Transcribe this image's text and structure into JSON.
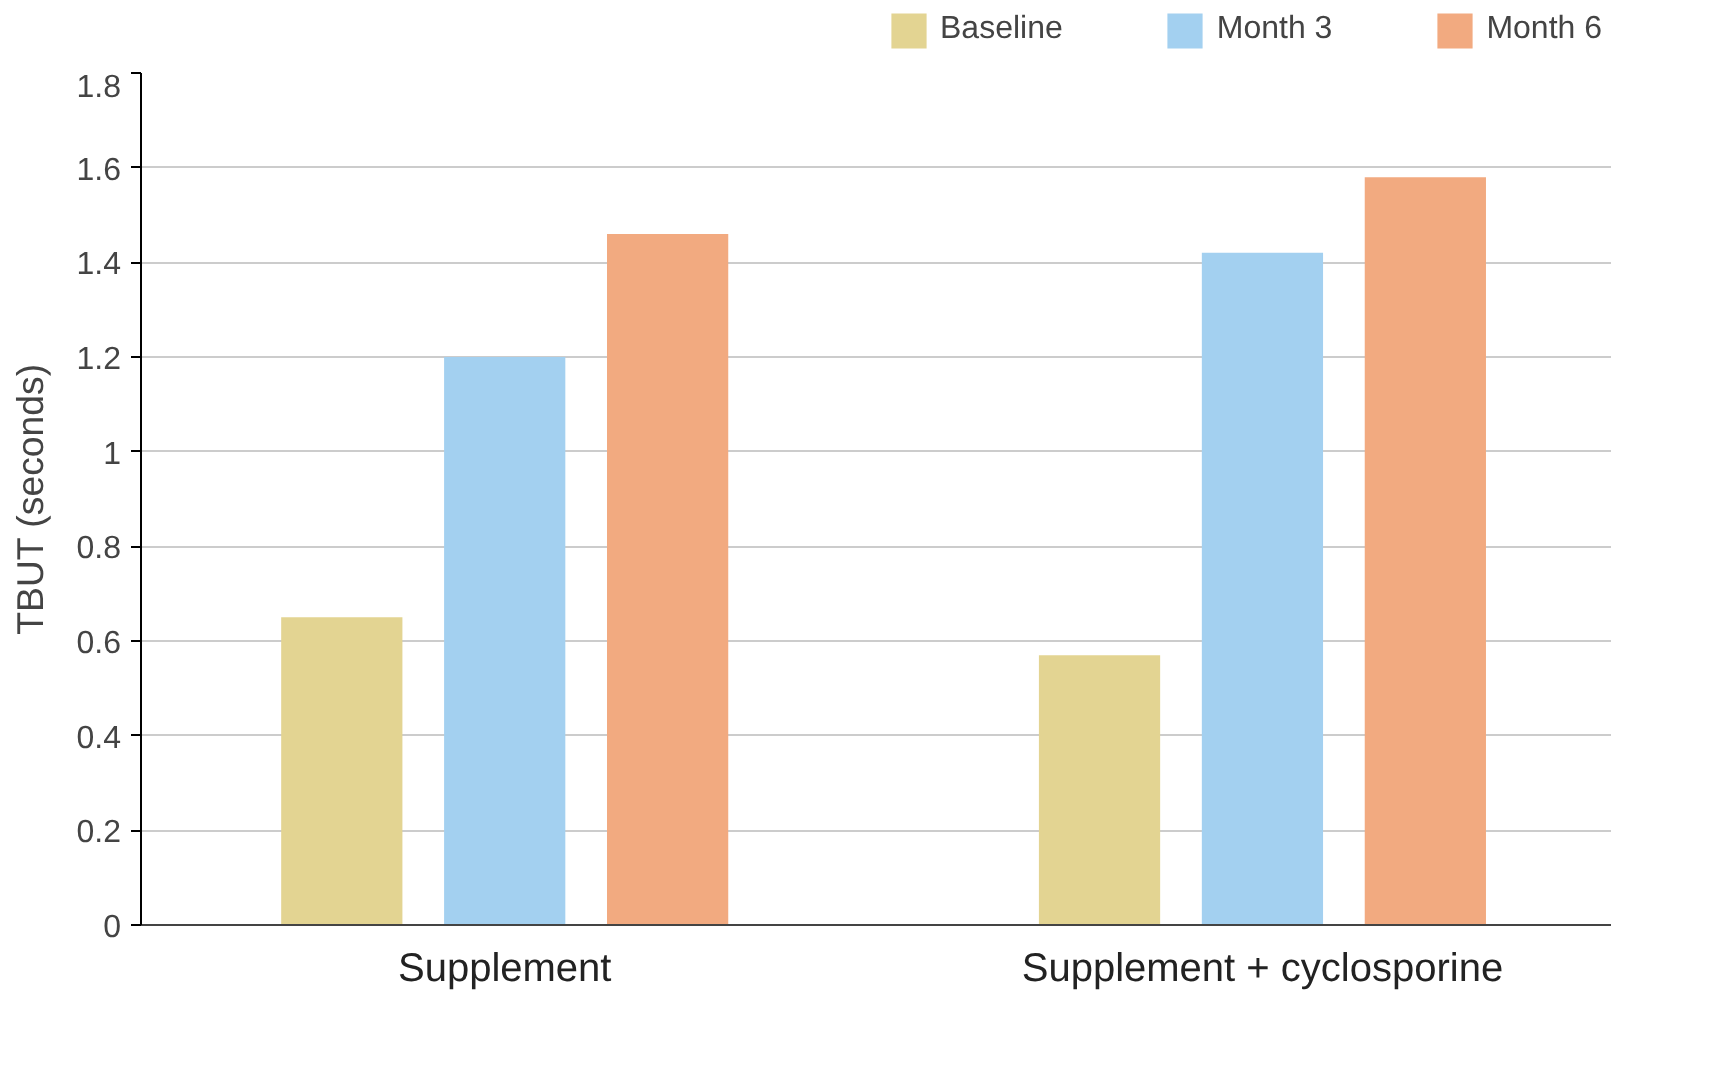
{
  "chart_data": {
    "type": "bar",
    "ylabel": "TBUT (seconds)",
    "categories": [
      "Supplement",
      "Supplement + cyclosporine"
    ],
    "series": [
      {
        "name": "Baseline",
        "color": "#e3d492",
        "values": [
          0.65,
          0.57
        ]
      },
      {
        "name": "Month 3",
        "color": "#a3d0f0",
        "values": [
          1.2,
          1.42
        ]
      },
      {
        "name": "Month 6",
        "color": "#f2aa80",
        "values": [
          1.46,
          1.58
        ]
      }
    ],
    "ylim": [
      0,
      1.8
    ],
    "yticks": [
      0,
      0.2,
      0.4,
      0.6,
      0.8,
      1,
      1.2,
      1.4,
      1.6,
      1.8
    ],
    "grid": "y",
    "legend": "top right"
  }
}
